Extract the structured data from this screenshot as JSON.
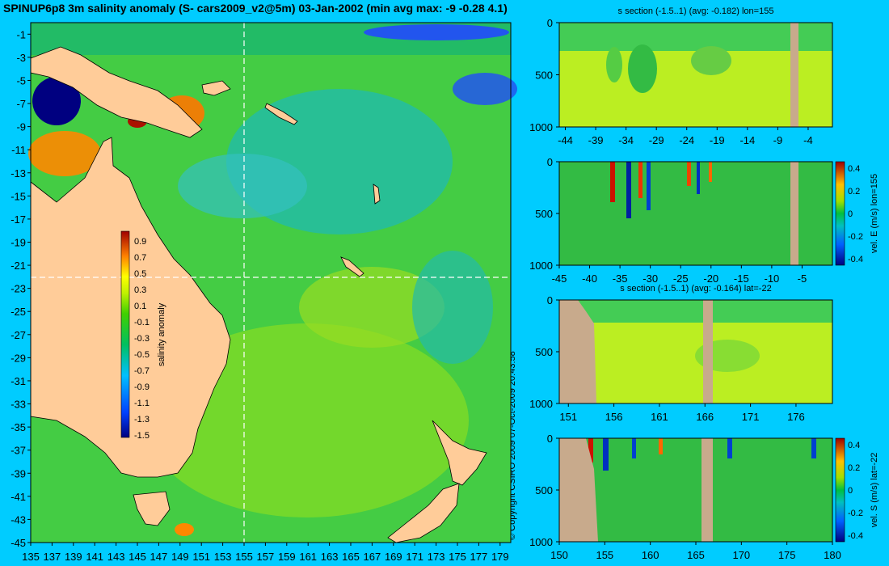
{
  "title": "SPINUP6p8 3m salinity anomaly (S- cars2009_v2@5m) 03-Jan-2002 (min avg max: -9 -0.28 4.1)",
  "copyright": "© Copyright CSIRO 2009   07-Oct-2009 20:43:58",
  "colors": {
    "background": "#00ccff",
    "land": "#ffcc99",
    "section_land": "#c8aa8c"
  },
  "chart_data": [
    {
      "type": "heatmap",
      "name": "map",
      "title": "",
      "xlabel": "",
      "ylabel": "",
      "xlim": [
        135,
        180
      ],
      "ylim": [
        -45,
        0
      ],
      "x_ticks": [
        "135",
        "137",
        "139",
        "141",
        "143",
        "145",
        "147",
        "149",
        "151",
        "153",
        "155",
        "157",
        "159",
        "161",
        "163",
        "165",
        "167",
        "169",
        "171",
        "173",
        "175",
        "177",
        "179"
      ],
      "y_ticks": [
        "-1",
        "-3",
        "-5",
        "-7",
        "-9",
        "-11",
        "-13",
        "-15",
        "-17",
        "-19",
        "-21",
        "-23",
        "-25",
        "-27",
        "-29",
        "-31",
        "-33",
        "-35",
        "-37",
        "-39",
        "-41",
        "-43",
        "-45"
      ],
      "section_lines": {
        "lon": 155,
        "lat": -22
      },
      "colorbar": {
        "label": "salinity anomaly",
        "ticks": [
          "0.9",
          "0.7",
          "0.5",
          "0.3",
          "0.1",
          "-0.1",
          "-0.3",
          "-0.5",
          "-0.7",
          "-0.9",
          "-1.1",
          "-1.3",
          "-1.5"
        ]
      }
    },
    {
      "type": "heatmap",
      "name": "panel1",
      "title": "s section (-1.5..1) (avg: -0.182) lon=155",
      "xlim": [
        -45,
        0
      ],
      "ylim": [
        1000,
        0
      ],
      "x_ticks": [
        "-44",
        "-39",
        "-34",
        "-29",
        "-24",
        "-19",
        "-14",
        "-9",
        "-4"
      ],
      "y_ticks": [
        "0",
        "500",
        "1000"
      ],
      "land_x": [
        -6.2,
        -5.2
      ]
    },
    {
      "type": "heatmap",
      "name": "panel2",
      "title": "",
      "xlim": [
        -45,
        0
      ],
      "ylim": [
        1000,
        0
      ],
      "x_ticks": [
        "-45",
        "-40",
        "-35",
        "-30",
        "-25",
        "-20",
        "-15",
        "-10",
        "-5"
      ],
      "y_ticks": [
        "0",
        "500",
        "1000"
      ],
      "land_x": [
        -6.2,
        -5.2
      ],
      "colorbar": {
        "label": "vel. E (m/s) lon=155",
        "ticks": [
          "0.4",
          "0.2",
          "0",
          "-0.2",
          "-0.4"
        ]
      }
    },
    {
      "type": "heatmap",
      "name": "panel3",
      "title": "s section (-1.5..1) (avg: -0.164) lat=-22",
      "xlim": [
        150,
        180
      ],
      "ylim": [
        1000,
        0
      ],
      "x_ticks": [
        "151",
        "156",
        "161",
        "166",
        "171",
        "176"
      ],
      "y_ticks": [
        "0",
        "500",
        "1000"
      ],
      "land_x": [
        166,
        167
      ]
    },
    {
      "type": "heatmap",
      "name": "panel4",
      "title": "",
      "xlim": [
        150,
        180
      ],
      "ylim": [
        1000,
        0
      ],
      "x_ticks": [
        "150",
        "155",
        "160",
        "165",
        "170",
        "175",
        "180"
      ],
      "y_ticks": [
        "0",
        "500",
        "1000"
      ],
      "land_x": [
        166,
        167
      ],
      "colorbar": {
        "label": "vel. S (m/s) lat=-22",
        "ticks": [
          "0.4",
          "0.2",
          "0",
          "-0.2",
          "-0.4"
        ]
      }
    }
  ]
}
